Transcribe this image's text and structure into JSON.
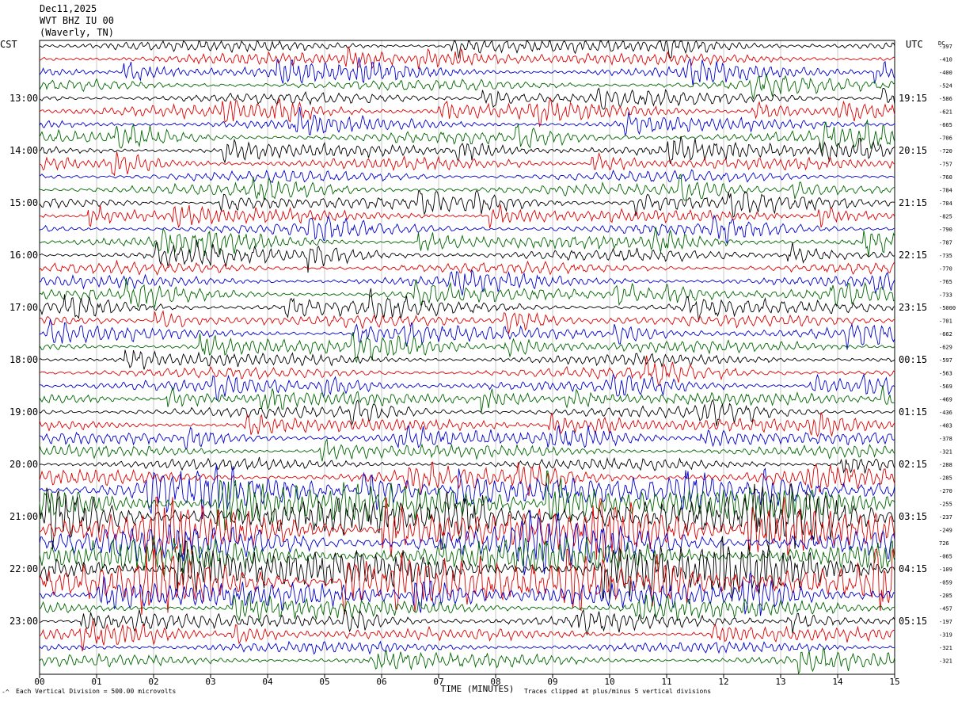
{
  "header": {
    "date": "Dec11,2025",
    "station": "WVT BHZ IU 00",
    "location": "(Waverly, TN)"
  },
  "axes": {
    "left_tz": "CST",
    "right_tz": "UTC",
    "dc_label": "DC",
    "xlabel": "TIME (MINUTES)"
  },
  "footer": {
    "left_mark": "-^",
    "vertical_division": "Each Vertical Division =  500.00 microvolts",
    "clip_note": "Traces clipped at plus/minus 5 vertical divisions"
  },
  "colors": {
    "trace_cycle": [
      "#000000",
      "#dd0000",
      "#0000cc",
      "#006600"
    ],
    "grid": "#000000"
  },
  "chart_data": {
    "type": "line",
    "subtype": "helicorder",
    "minutes_per_line": 15,
    "lines_per_hour": 4,
    "xlim": [
      0,
      15
    ],
    "x_ticks": [
      "00",
      "01",
      "02",
      "03",
      "04",
      "05",
      "06",
      "07",
      "08",
      "09",
      "10",
      "11",
      "12",
      "13",
      "14",
      "15"
    ],
    "cst_hour_labels": [
      "13:00",
      "14:00",
      "15:00",
      "16:00",
      "17:00",
      "18:00",
      "19:00",
      "20:00",
      "21:00",
      "22:00",
      "23:00"
    ],
    "utc_hour_labels": [
      "19:15",
      "20:15",
      "21:15",
      "22:15",
      "23:15",
      "00:15",
      "01:15",
      "02:15",
      "03:15",
      "04:15",
      "05:15"
    ],
    "first_labeled_line_index": 4,
    "dc_offsets": [
      "-397",
      "-410",
      "-400",
      "-524",
      "-586",
      "-621",
      "-665",
      "-706",
      "-720",
      "-757",
      "-760",
      "-784",
      "-784",
      "-825",
      "-790",
      "-787",
      "-735",
      "-770",
      "-765",
      "-733",
      "-5000",
      "-701",
      "-662",
      "-629",
      "-597",
      "-563",
      "-569",
      "-469",
      "-436",
      "-403",
      "-378",
      "-321",
      "-288",
      "-285",
      "-270",
      "-255",
      "-237",
      "-249",
      "726",
      "-065",
      "-109",
      "-059",
      "-205",
      "-457",
      "-197",
      "-319",
      "-321",
      "-321"
    ],
    "amplitude_profile": [
      1,
      1,
      1,
      1,
      1,
      1,
      1,
      1,
      1,
      1,
      1,
      1,
      1,
      1,
      1,
      1,
      1,
      1,
      1,
      1,
      1,
      1,
      1,
      1,
      1,
      1,
      1,
      1,
      1,
      1,
      1,
      1,
      1,
      1.3,
      2,
      3,
      3,
      3,
      3,
      3,
      3,
      3,
      2,
      1.3,
      1,
      1,
      1,
      1
    ],
    "note": "trace amplitude shown relative to one vertical division; large signal 20:45-22:30 CST"
  }
}
